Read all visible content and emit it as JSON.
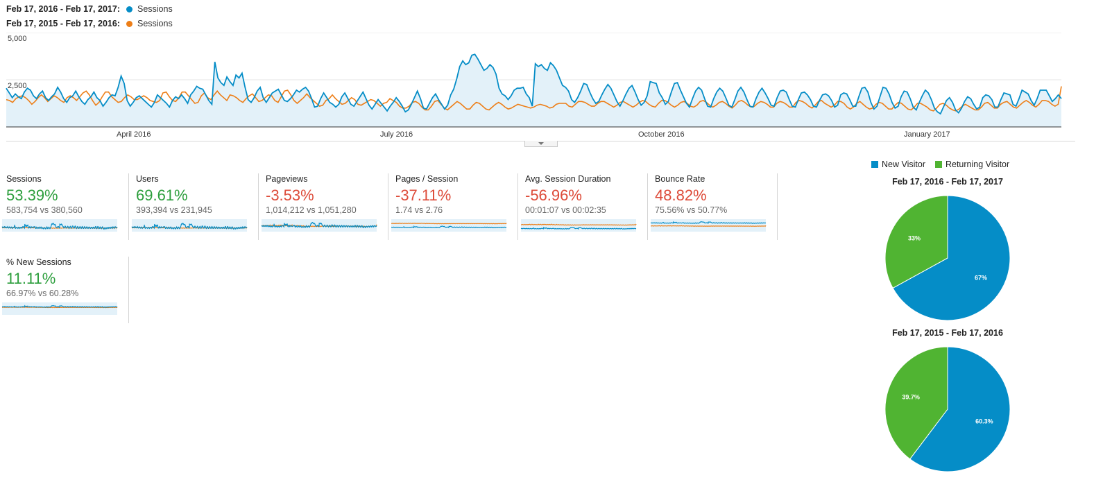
{
  "legend": [
    {
      "range": "Feb 17, 2016 - Feb 17, 2017:",
      "series": "Sessions",
      "color": "#058dc7"
    },
    {
      "range": "Feb 17, 2015 - Feb 17, 2016:",
      "series": "Sessions",
      "color": "#ed7e17"
    }
  ],
  "chart_data": [
    {
      "type": "line",
      "ylim": [
        0,
        5000
      ],
      "y_ticks": [
        "5,000",
        "2,500"
      ],
      "x_tick_labels": [
        "April 2016",
        "July 2016",
        "October 2016",
        "January 2017"
      ],
      "series": [
        {
          "name": "Sessions",
          "color": "#058dc7",
          "values": [
            2050,
            1800,
            1550,
            1750,
            1600,
            1500,
            1850,
            2050,
            1950,
            1650,
            1500,
            1750,
            1900,
            1550,
            1400,
            1600,
            1750,
            2100,
            1850,
            1500,
            1300,
            1550,
            1650,
            1900,
            1600,
            1350,
            1200,
            1450,
            1600,
            1850,
            1550,
            1400,
            1100,
            1300,
            1550,
            1700,
            1650,
            2100,
            2700,
            2300,
            1400,
            1100,
            1300,
            1550,
            1650,
            1500,
            1350,
            1200,
            1050,
            1300,
            1700,
            1550,
            1400,
            1250,
            1050,
            1400,
            1600,
            1500,
            1700,
            1500,
            1250,
            1700,
            1900,
            2150,
            2050,
            2000,
            1700,
            1400,
            1200,
            3450,
            2600,
            2350,
            2200,
            2650,
            2400,
            2200,
            2750,
            2600,
            2850,
            2100,
            1450,
            1300,
            1550,
            1900,
            2100,
            1550,
            1300,
            1550,
            1800,
            1900,
            2000,
            1700,
            1400,
            1350,
            1500,
            1700,
            1950,
            1850,
            2000,
            2100,
            1900,
            1500,
            1050,
            1100,
            1500,
            1800,
            1550,
            1300,
            1200,
            1050,
            1200,
            1600,
            1800,
            1500,
            1200,
            1100,
            1350,
            1600,
            1850,
            1500,
            1150,
            950,
            1200,
            1450,
            1250,
            1050,
            850,
            1100,
            1300,
            1550,
            1350,
            1100,
            800,
            900,
            1200,
            1550,
            1900,
            1500,
            1000,
            950,
            1250,
            1550,
            1750,
            1450,
            1200,
            950,
            1150,
            1700,
            2000,
            2550,
            3200,
            3500,
            3300,
            3400,
            3800,
            3850,
            3600,
            3300,
            3000,
            3100,
            3300,
            3150,
            2800,
            2050,
            1750,
            1650,
            1450,
            1650,
            1950,
            2050,
            2050,
            2100,
            1750,
            1550,
            1100,
            3350,
            3200,
            3300,
            3100,
            3000,
            3400,
            3250,
            3000,
            2600,
            2200,
            2100,
            1900,
            1450,
            1300,
            1550,
            1900,
            2300,
            2250,
            1850,
            1500,
            1250,
            1350,
            1700,
            2000,
            2250,
            2050,
            1700,
            1350,
            1100,
            1400,
            1750,
            2050,
            2200,
            1850,
            1450,
            1150,
            1300,
            1650,
            2400,
            2350,
            2300,
            1800,
            1550,
            1200,
            1350,
            1850,
            2300,
            2350,
            1950,
            1600,
            1250,
            1050,
            1500,
            1900,
            2100,
            1950,
            1500,
            1100,
            1050,
            1500,
            1850,
            2050,
            1900,
            1550,
            1150,
            1050,
            1450,
            1900,
            2100,
            1850,
            1450,
            1100,
            1050,
            1500,
            1850,
            2050,
            1800,
            1500,
            1150,
            1100,
            1550,
            1900,
            1950,
            1850,
            1450,
            1100,
            1050,
            1450,
            1800,
            1850,
            1700,
            1450,
            1100,
            1050,
            1400,
            1700,
            1750,
            1650,
            1400,
            1050,
            1150,
            1700,
            1800,
            1750,
            1450,
            1100,
            1100,
            1600,
            2050,
            2100,
            1850,
            1300,
            950,
            1100,
            1600,
            2100,
            2050,
            1750,
            1300,
            1000,
            1100,
            1600,
            1900,
            1850,
            1500,
            1050,
            900,
            1300,
            1650,
            1950,
            1800,
            1450,
            1000,
            800,
            700,
            1050,
            1400,
            1550,
            1300,
            900,
            750,
            1000,
            1350,
            1600,
            1500,
            1200,
            950,
            1050,
            1550,
            1700,
            1650,
            1450,
            1050,
            1050,
            1450,
            1800,
            1750,
            1700,
            1200,
            1100,
            1500,
            1950,
            1850,
            1750,
            1400,
            1150,
            1500,
            1950,
            1950,
            1950,
            1650,
            1350,
            1500,
            1700,
            1500
          ]
        },
        {
          "name": "Sessions",
          "color": "#ed7e17",
          "values": [
            1450,
            1400,
            1300,
            1500,
            1600,
            1650,
            1550,
            1400,
            1200,
            1350,
            1550,
            1700,
            1550,
            1350,
            1500,
            1650,
            1550,
            1400,
            1300,
            1550,
            1650,
            1550,
            1400,
            1600,
            1800,
            1900,
            1700,
            1400,
            1150,
            1300,
            1600,
            1850,
            1850,
            1600,
            1450,
            1300,
            1350,
            1550,
            1700,
            1600,
            1450,
            1450,
            1550,
            1650,
            1550,
            1400,
            1350,
            1300,
            1400,
            1800,
            1850,
            1600,
            1400,
            1350,
            1550,
            1850,
            1850,
            1650,
            1450,
            1250,
            1300,
            1650,
            1800,
            1550,
            1450,
            1700,
            1900,
            1700,
            1550,
            1400,
            1700,
            1650,
            1550,
            1400,
            1300,
            1500,
            1650,
            1750,
            1550,
            1350,
            1400,
            1550,
            1700,
            1650,
            1400,
            1300,
            1600,
            1900,
            1950,
            1700,
            1400,
            1250,
            1400,
            1550,
            1750,
            1550,
            1400,
            1250,
            1100,
            1150,
            1400,
            1500,
            1700,
            1500,
            1350,
            1200,
            1250,
            1400,
            1550,
            1450,
            1200,
            1150,
            1250,
            1350,
            1450,
            1400,
            1250,
            1100,
            1250,
            1300,
            1500,
            1400,
            1300,
            1100,
            1000,
            1000,
            1100,
            1300,
            1350,
            1250,
            1050,
            900,
            900,
            1100,
            1350,
            1400,
            1200,
            1000,
            900,
            1050,
            1200,
            1350,
            1250,
            1100,
            950,
            950,
            1150,
            1300,
            1250,
            1100,
            950,
            900,
            1050,
            1200,
            1300,
            1200,
            1050,
            950,
            1000,
            1100,
            1200,
            1150,
            1100,
            1050,
            1000,
            1050,
            1150,
            1200,
            1150,
            1100,
            1000,
            1050,
            1200,
            1250,
            1250,
            1250,
            1100,
            1050,
            1200,
            1350,
            1350,
            1300,
            1200,
            1100,
            1100,
            1250,
            1350,
            1350,
            1250,
            1150,
            1050,
            1150,
            1300,
            1350,
            1250,
            1150,
            1050,
            1150,
            1300,
            1400,
            1350,
            1200,
            1100,
            1050,
            1250,
            1400,
            1400,
            1300,
            1150,
            1050,
            1150,
            1300,
            1350,
            1250,
            1100,
            1050,
            1150,
            1350,
            1400,
            1300,
            1150,
            1050,
            1150,
            1300,
            1350,
            1250,
            1100,
            1000,
            1150,
            1350,
            1400,
            1300,
            1150,
            1050,
            1100,
            1250,
            1350,
            1300,
            1200,
            1050,
            1050,
            1250,
            1350,
            1300,
            1200,
            1050,
            1050,
            1300,
            1400,
            1350,
            1250,
            1100,
            1000,
            1150,
            1350,
            1400,
            1250,
            1150,
            1050,
            1150,
            1350,
            1350,
            1250,
            1050,
            950,
            1050,
            1250,
            1350,
            1200,
            1050,
            950,
            1000,
            1200,
            1300,
            1250,
            1100,
            950,
            950,
            1150,
            1300,
            1250,
            1100,
            950,
            900,
            1050,
            1250,
            1250,
            1150,
            1050,
            900,
            850,
            1000,
            1200,
            1250,
            1150,
            1000,
            900,
            850,
            950,
            1100,
            1200,
            1100,
            1000,
            900,
            900,
            1050,
            1250,
            1300,
            1150,
            1000,
            1000,
            1200,
            1300,
            1350,
            1200,
            1050,
            1000,
            1150,
            1300,
            1400,
            1300,
            1150,
            1050,
            1200,
            1400,
            1400,
            1350,
            1200,
            1100,
            1200,
            2150
          ]
        }
      ]
    }
  ],
  "scorecards": [
    {
      "label": "Sessions",
      "pct": "53.39%",
      "status": "good",
      "compare": "583,754 vs 380,560"
    },
    {
      "label": "Users",
      "pct": "69.61%",
      "status": "good",
      "compare": "393,394 vs 231,945"
    },
    {
      "label": "Pageviews",
      "pct": "-3.53%",
      "status": "bad",
      "compare": "1,014,212 vs 1,051,280"
    },
    {
      "label": "Pages / Session",
      "pct": "-37.11%",
      "status": "bad",
      "compare": "1.74 vs 2.76"
    },
    {
      "label": "Avg. Session Duration",
      "pct": "-56.96%",
      "status": "bad",
      "compare": "00:01:07 vs 00:02:35"
    },
    {
      "label": "Bounce Rate",
      "pct": "48.82%",
      "status": "bad",
      "compare": "75.56% vs 50.77%"
    },
    {
      "label": "% New Sessions",
      "pct": "11.11%",
      "status": "good",
      "compare": "66.97% vs 60.28%"
    }
  ],
  "pie_legend": [
    {
      "label": "New Visitor",
      "color": "#058dc7"
    },
    {
      "label": "Returning Visitor",
      "color": "#50b432"
    }
  ],
  "pies": [
    {
      "title": "Feb 17, 2016 - Feb 17, 2017",
      "slices": [
        {
          "label": "67%",
          "value": 67,
          "color": "#058dc7"
        },
        {
          "label": "33%",
          "value": 33,
          "color": "#50b432"
        }
      ]
    },
    {
      "title": "Feb 17, 2015 - Feb 17, 2016",
      "slices": [
        {
          "label": "60.3%",
          "value": 60.3,
          "color": "#058dc7"
        },
        {
          "label": "39.7%",
          "value": 39.7,
          "color": "#50b432"
        }
      ]
    }
  ],
  "colors": {
    "good": "#2c9e3c",
    "bad": "#dd4b39",
    "primary": "#058dc7",
    "secondary": "#ed7e17",
    "returning": "#50b432"
  }
}
